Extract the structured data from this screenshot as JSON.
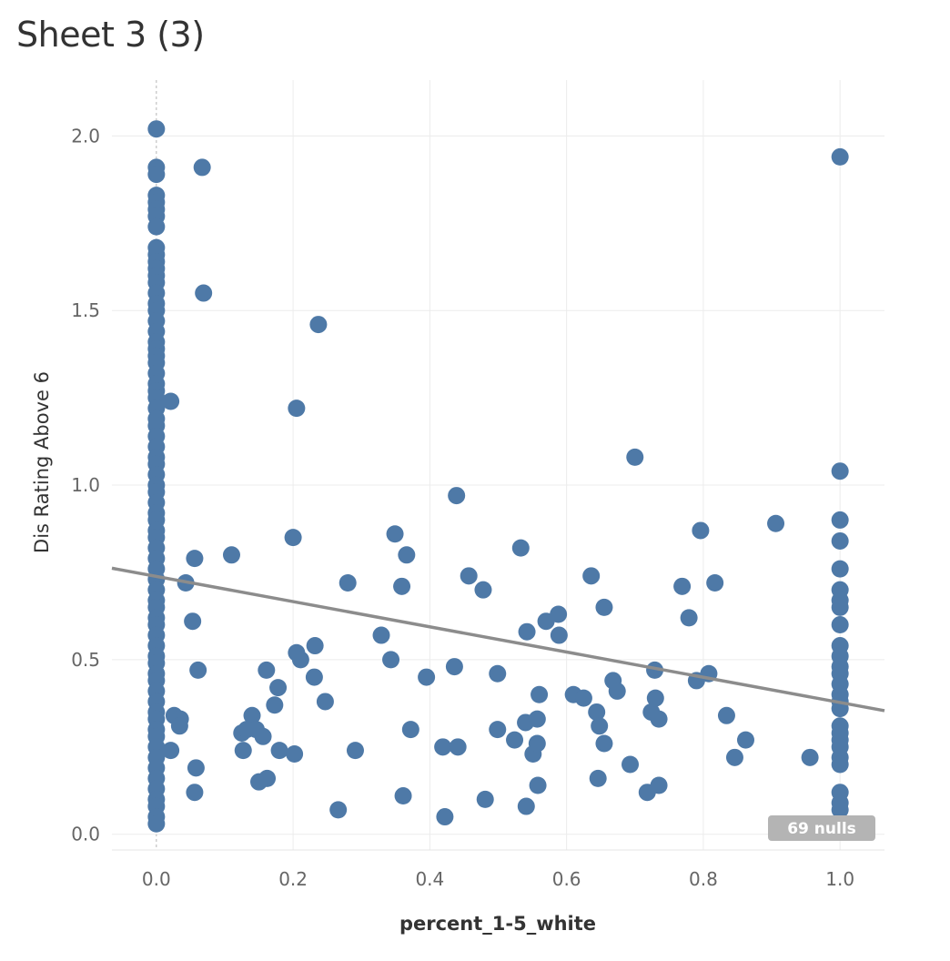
{
  "sheet": {
    "title": "Sheet 3 (3)"
  },
  "nulls_badge": {
    "text": "69 nulls"
  },
  "colors": {
    "points": "#4e79a7",
    "trend_line": "#8c8c8c",
    "grid": "#ececec",
    "nulls_badge": "#b4b4b4"
  },
  "chart_data": {
    "type": "scatter",
    "title": "Sheet 3 (3)",
    "xlabel": "percent_1-5_white",
    "ylabel": "Dis Rating Above 6",
    "xlim": [
      -0.065,
      1.065
    ],
    "ylim": [
      -0.045,
      2.16
    ],
    "x_ticks": [
      "0.0",
      "0.2",
      "0.4",
      "0.6",
      "0.8",
      "1.0"
    ],
    "y_ticks": [
      "0.0",
      "0.5",
      "1.0",
      "1.5",
      "2.0"
    ],
    "grid": true,
    "zero_reference_line": "x = 0 (dashed)",
    "trend_line": {
      "x": [
        -0.065,
        1.065
      ],
      "y": [
        0.762,
        0.354
      ]
    },
    "nulls": "69 nulls",
    "series": [
      {
        "points": [
          [
            0,
            2.02
          ],
          [
            0,
            1.91
          ],
          [
            0,
            1.89
          ],
          [
            0,
            1.83
          ],
          [
            0,
            1.81
          ],
          [
            0,
            1.79
          ],
          [
            0,
            1.77
          ],
          [
            0,
            1.74
          ],
          [
            0,
            1.68
          ],
          [
            0,
            1.66
          ],
          [
            0,
            1.64
          ],
          [
            0,
            1.62
          ],
          [
            0,
            1.6
          ],
          [
            0,
            1.58
          ],
          [
            0,
            1.55
          ],
          [
            0,
            1.52
          ],
          [
            0,
            1.5
          ],
          [
            0,
            1.47
          ],
          [
            0,
            1.44
          ],
          [
            0,
            1.41
          ],
          [
            0,
            1.39
          ],
          [
            0,
            1.37
          ],
          [
            0,
            1.35
          ],
          [
            0,
            1.32
          ],
          [
            0,
            1.29
          ],
          [
            0,
            1.27
          ],
          [
            0,
            1.25
          ],
          [
            0,
            1.22
          ],
          [
            0,
            1.19
          ],
          [
            0,
            1.17
          ],
          [
            0,
            1.14
          ],
          [
            0,
            1.11
          ],
          [
            0,
            1.08
          ],
          [
            0,
            1.06
          ],
          [
            0,
            1.03
          ],
          [
            0,
            1.0
          ],
          [
            0,
            0.98
          ],
          [
            0,
            0.95
          ],
          [
            0,
            0.92
          ],
          [
            0,
            0.9
          ],
          [
            0,
            0.87
          ],
          [
            0,
            0.85
          ],
          [
            0,
            0.82
          ],
          [
            0,
            0.79
          ],
          [
            0,
            0.76
          ],
          [
            0,
            0.73
          ],
          [
            0,
            0.7
          ],
          [
            0,
            0.67
          ],
          [
            0,
            0.65
          ],
          [
            0,
            0.62
          ],
          [
            0,
            0.6
          ],
          [
            0,
            0.57
          ],
          [
            0,
            0.54
          ],
          [
            0,
            0.51
          ],
          [
            0,
            0.49
          ],
          [
            0,
            0.46
          ],
          [
            0,
            0.44
          ],
          [
            0,
            0.41
          ],
          [
            0,
            0.38
          ],
          [
            0,
            0.35
          ],
          [
            0,
            0.33
          ],
          [
            0,
            0.3
          ],
          [
            0,
            0.28
          ],
          [
            0,
            0.25
          ],
          [
            0,
            0.22
          ],
          [
            0,
            0.19
          ],
          [
            0,
            0.16
          ],
          [
            0,
            0.13
          ],
          [
            0,
            0.1
          ],
          [
            0,
            0.08
          ],
          [
            0,
            0.05
          ],
          [
            0,
            0.03
          ],
          [
            0.067,
            1.91
          ],
          [
            0.069,
            1.55
          ],
          [
            0.021,
            1.24
          ],
          [
            0.056,
            0.79
          ],
          [
            0.043,
            0.72
          ],
          [
            0.053,
            0.61
          ],
          [
            0.061,
            0.47
          ],
          [
            0.026,
            0.34
          ],
          [
            0.035,
            0.33
          ],
          [
            0.034,
            0.31
          ],
          [
            0.021,
            0.24
          ],
          [
            0.058,
            0.19
          ],
          [
            0.056,
            0.12
          ],
          [
            0.11,
            0.8
          ],
          [
            0.2,
            0.85
          ],
          [
            0.205,
            1.22
          ],
          [
            0.237,
            1.46
          ],
          [
            0.205,
            0.52
          ],
          [
            0.211,
            0.5
          ],
          [
            0.232,
            0.54
          ],
          [
            0.231,
            0.45
          ],
          [
            0.247,
            0.38
          ],
          [
            0.14,
            0.34
          ],
          [
            0.161,
            0.47
          ],
          [
            0.178,
            0.42
          ],
          [
            0.173,
            0.37
          ],
          [
            0.125,
            0.29
          ],
          [
            0.132,
            0.3
          ],
          [
            0.146,
            0.3
          ],
          [
            0.156,
            0.28
          ],
          [
            0.127,
            0.24
          ],
          [
            0.18,
            0.24
          ],
          [
            0.202,
            0.23
          ],
          [
            0.162,
            0.16
          ],
          [
            0.15,
            0.15
          ],
          [
            0.28,
            0.72
          ],
          [
            0.266,
            0.07
          ],
          [
            0.291,
            0.24
          ],
          [
            0.329,
            0.57
          ],
          [
            0.343,
            0.5
          ],
          [
            0.349,
            0.86
          ],
          [
            0.359,
            0.71
          ],
          [
            0.366,
            0.8
          ],
          [
            0.372,
            0.3
          ],
          [
            0.361,
            0.11
          ],
          [
            0.395,
            0.45
          ],
          [
            0.419,
            0.25
          ],
          [
            0.422,
            0.05
          ],
          [
            0.439,
            0.97
          ],
          [
            0.436,
            0.48
          ],
          [
            0.441,
            0.25
          ],
          [
            0.457,
            0.74
          ],
          [
            0.478,
            0.7
          ],
          [
            0.481,
            0.1
          ],
          [
            0.499,
            0.46
          ],
          [
            0.499,
            0.3
          ],
          [
            0.524,
            0.27
          ],
          [
            0.533,
            0.82
          ],
          [
            0.542,
            0.58
          ],
          [
            0.54,
            0.32
          ],
          [
            0.541,
            0.08
          ],
          [
            0.551,
            0.23
          ],
          [
            0.557,
            0.33
          ],
          [
            0.557,
            0.26
          ],
          [
            0.558,
            0.14
          ],
          [
            0.56,
            0.4
          ],
          [
            0.57,
            0.61
          ],
          [
            0.588,
            0.63
          ],
          [
            0.589,
            0.57
          ],
          [
            0.61,
            0.4
          ],
          [
            0.625,
            0.39
          ],
          [
            0.636,
            0.74
          ],
          [
            0.644,
            0.35
          ],
          [
            0.648,
            0.31
          ],
          [
            0.646,
            0.16
          ],
          [
            0.655,
            0.65
          ],
          [
            0.655,
            0.26
          ],
          [
            0.668,
            0.44
          ],
          [
            0.674,
            0.41
          ],
          [
            0.693,
            0.2
          ],
          [
            0.7,
            1.08
          ],
          [
            0.718,
            0.12
          ],
          [
            0.724,
            0.35
          ],
          [
            0.729,
            0.47
          ],
          [
            0.73,
            0.39
          ],
          [
            0.735,
            0.33
          ],
          [
            0.735,
            0.14
          ],
          [
            0.769,
            0.71
          ],
          [
            0.779,
            0.62
          ],
          [
            0.79,
            0.44
          ],
          [
            0.796,
            0.87
          ],
          [
            0.808,
            0.46
          ],
          [
            0.817,
            0.72
          ],
          [
            0.834,
            0.34
          ],
          [
            0.846,
            0.22
          ],
          [
            0.862,
            0.27
          ],
          [
            0.906,
            0.89
          ],
          [
            0.956,
            0.22
          ],
          [
            1,
            1.94
          ],
          [
            1,
            1.04
          ],
          [
            1,
            0.9
          ],
          [
            1,
            0.84
          ],
          [
            1,
            0.76
          ],
          [
            1,
            0.7
          ],
          [
            1,
            0.67
          ],
          [
            1,
            0.65
          ],
          [
            1,
            0.6
          ],
          [
            1,
            0.54
          ],
          [
            1,
            0.51
          ],
          [
            1,
            0.48
          ],
          [
            1,
            0.46
          ],
          [
            1,
            0.43
          ],
          [
            1,
            0.4
          ],
          [
            1,
            0.38
          ],
          [
            1,
            0.36
          ],
          [
            1,
            0.31
          ],
          [
            1,
            0.29
          ],
          [
            1,
            0.27
          ],
          [
            1,
            0.25
          ],
          [
            1,
            0.22
          ],
          [
            1,
            0.2
          ],
          [
            1,
            0.12
          ],
          [
            1,
            0.09
          ],
          [
            1,
            0.07
          ]
        ]
      }
    ]
  }
}
